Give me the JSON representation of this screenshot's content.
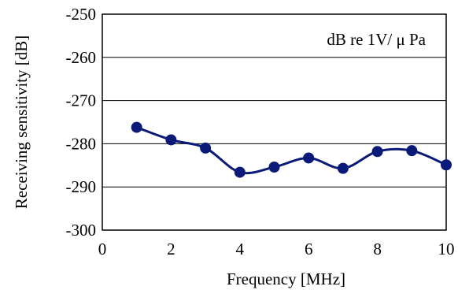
{
  "chart_data": {
    "type": "line",
    "xlabel": "Frequency    [MHz]",
    "ylabel": "Receiving sensitivity    [dB]",
    "annotation": "dB re 1V/ μ Pa",
    "xlim": [
      0,
      10
    ],
    "ylim": [
      -300,
      -250
    ],
    "x_ticks": [
      "0",
      "2",
      "4",
      "6",
      "8",
      "10"
    ],
    "y_ticks": [
      "-250",
      "-260",
      "-270",
      "-280",
      "-290",
      "-300"
    ],
    "grid": "horizontal",
    "series": [
      {
        "x": [
          1,
          2,
          3,
          4,
          5,
          6,
          7,
          8,
          9,
          10
        ],
        "values": [
          -276.2,
          -279.1,
          -281.0,
          -286.6,
          -285.4,
          -283.3,
          -285.7,
          -281.8,
          -281.6,
          -284.9
        ],
        "color": "#0a1a78",
        "marker": "circle"
      }
    ]
  }
}
